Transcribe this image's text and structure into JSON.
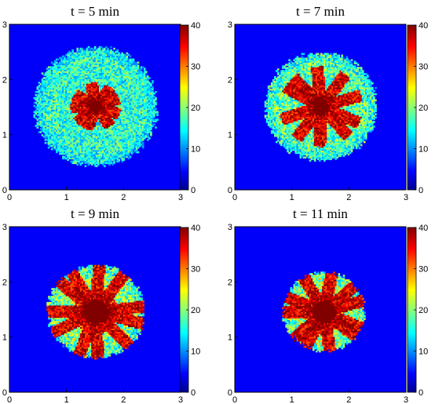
{
  "chart_data": [
    {
      "type": "heatmap",
      "title": "t = 5 min",
      "xlim": [
        0,
        3
      ],
      "ylim": [
        0,
        3
      ],
      "xticks": [
        "0",
        "1",
        "2",
        "3"
      ],
      "yticks": [
        "0",
        "1",
        "2",
        "3"
      ],
      "colorbar": {
        "range": [
          0,
          40
        ],
        "ticks": [
          "0",
          "10",
          "20",
          "30",
          "40"
        ],
        "colormap": "jet"
      },
      "center": [
        1.5,
        1.5
      ],
      "disk_radius": 1.08,
      "core_radius": 0.09,
      "arms": 9,
      "arm_length": 0.35,
      "disk_level": 15,
      "core_level": 40
    },
    {
      "type": "heatmap",
      "title": "t = 7 min",
      "xlim": [
        0,
        3
      ],
      "ylim": [
        0,
        3
      ],
      "xticks": [
        "0",
        "1",
        "2",
        "3"
      ],
      "yticks": [
        "0",
        "1",
        "2",
        "3"
      ],
      "colorbar": {
        "range": [
          0,
          40
        ],
        "ticks": [
          "0",
          "10",
          "20",
          "30",
          "40"
        ],
        "colormap": "jet"
      },
      "center": [
        1.5,
        1.5
      ],
      "disk_radius": 0.98,
      "core_radius": 0.13,
      "arms": 10,
      "arm_length": 0.6,
      "disk_level": 17,
      "core_level": 40
    },
    {
      "type": "heatmap",
      "title": "t = 9 min",
      "xlim": [
        0,
        3
      ],
      "ylim": [
        0,
        3
      ],
      "xticks": [
        "0",
        "1",
        "2",
        "3"
      ],
      "yticks": [
        "0",
        "1",
        "2",
        "3"
      ],
      "colorbar": {
        "range": [
          0,
          40
        ],
        "ticks": [
          "0",
          "10",
          "20",
          "30",
          "40"
        ],
        "colormap": "jet"
      },
      "center": [
        1.5,
        1.45
      ],
      "disk_radius": 0.85,
      "core_radius": 0.22,
      "arms": 11,
      "arm_length": 0.72,
      "disk_level": 19,
      "core_level": 40
    },
    {
      "type": "heatmap",
      "title": "t = 11 min",
      "xlim": [
        0,
        3
      ],
      "ylim": [
        0,
        3
      ],
      "xticks": [
        "0",
        "1",
        "2",
        "3"
      ],
      "yticks": [
        "0",
        "1",
        "2",
        "3"
      ],
      "colorbar": {
        "range": [
          0,
          40
        ],
        "ticks": [
          "0",
          "10",
          "20",
          "30",
          "40"
        ],
        "colormap": "jet"
      },
      "center": [
        1.55,
        1.45
      ],
      "disk_radius": 0.72,
      "core_radius": 0.2,
      "arms": 11,
      "arm_length": 0.66,
      "disk_level": 20,
      "core_level": 40
    }
  ]
}
